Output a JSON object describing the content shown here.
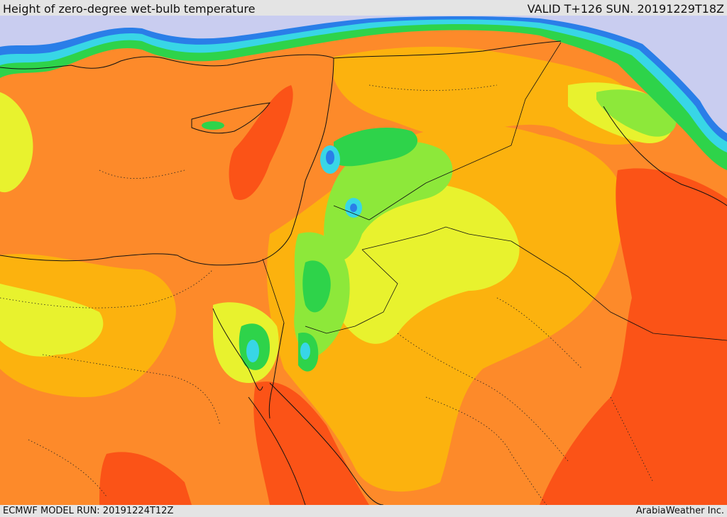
{
  "header": {
    "title": "Height of zero-degree wet-bulb temperature",
    "valid": "VALID T+126 SUN. 20191229T18Z"
  },
  "footer": {
    "model_run": "ECMWF MODEL RUN: 20191224T12Z",
    "credit": "ArabiaWeather Inc."
  },
  "colors": {
    "very_low": "#c9cdf0",
    "low_cyan": "#38d6e6",
    "low_blue": "#2a7ee8",
    "green": "#2ed34a",
    "light_green": "#8de83a",
    "yellow": "#e8f22e",
    "gold": "#fcb20e",
    "orange": "#fd8a2a",
    "red_orange": "#fb5317"
  }
}
